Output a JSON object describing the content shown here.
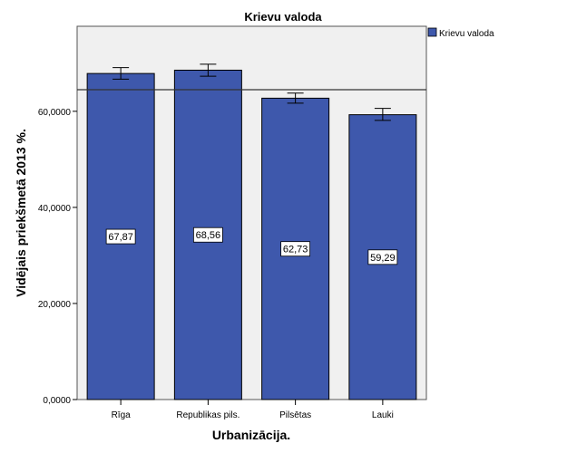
{
  "chart_data": {
    "type": "bar",
    "title": "Krievu valoda",
    "xlabel": "Urbanizācija.",
    "ylabel": "Vidējais priekšmetā 2013 %.",
    "categories": [
      "Rīga",
      "Republikas pils.",
      "Pilsētas",
      "Lauki"
    ],
    "series": [
      {
        "name": "Krievu valoda",
        "values": [
          67.87,
          68.56,
          62.73,
          59.29
        ],
        "value_labels": [
          "67,87",
          "68,56",
          "62,73",
          "59,29"
        ],
        "error_low": [
          66.7,
          67.3,
          61.7,
          58.1
        ],
        "error_high": [
          69.1,
          69.8,
          63.8,
          60.6
        ],
        "color": "#3e58ac"
      }
    ],
    "reference_line": 64.5,
    "ylim": [
      0,
      77.7
    ],
    "yticks": [
      0,
      20,
      40,
      60
    ],
    "ytick_labels": [
      "0,0000",
      "20,0000",
      "40,0000",
      "60,0000"
    ],
    "legend": {
      "position": "top-right",
      "entries": [
        "Krievu valoda"
      ]
    },
    "grid": false,
    "plot_background": "#f0f0f0"
  }
}
